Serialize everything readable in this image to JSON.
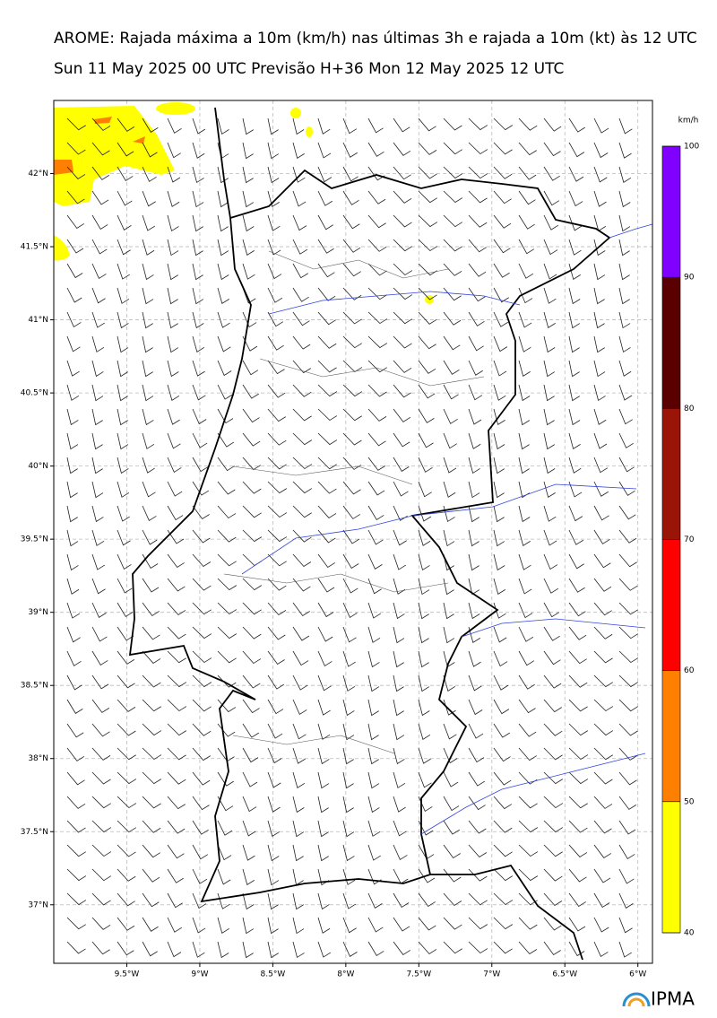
{
  "header": {
    "title": "AROME: Rajada máxima a 10m (km/h) nas últimas 3h e rajada a 10m (kt) às 12 UTC",
    "subtitle": "Sun 11 May 2025 00 UTC Previsão H+36 Mon 12 May 2025 12 UTC"
  },
  "map": {
    "xlim": [
      -10.0,
      -5.9
    ],
    "ylim": [
      36.6,
      42.5
    ],
    "lon_ticks": [
      {
        "value": -9.5,
        "label": "9.5°W"
      },
      {
        "value": -9,
        "label": "9°W"
      },
      {
        "value": -8.5,
        "label": "8.5°W"
      },
      {
        "value": -8,
        "label": "8°W"
      },
      {
        "value": -7.5,
        "label": "7.5°W"
      },
      {
        "value": -7,
        "label": "7°W"
      },
      {
        "value": -6.5,
        "label": "6.5°W"
      },
      {
        "value": -6,
        "label": "6°W"
      }
    ],
    "lat_ticks": [
      {
        "value": 42,
        "label": "42°N"
      },
      {
        "value": 41.5,
        "label": "41.5°N"
      },
      {
        "value": 41,
        "label": "41°N"
      },
      {
        "value": 40.5,
        "label": "40.5°N"
      },
      {
        "value": 40,
        "label": "40°N"
      },
      {
        "value": 39.5,
        "label": "39.5°N"
      },
      {
        "value": 39,
        "label": "39°N"
      },
      {
        "value": 38.5,
        "label": "38.5°N"
      },
      {
        "value": 38,
        "label": "38°N"
      },
      {
        "value": 37.5,
        "label": "37.5°N"
      },
      {
        "value": 37,
        "label": "37°N"
      }
    ],
    "grid": true
  },
  "colorbar": {
    "unit": "km/h",
    "ticks": [
      40,
      50,
      60,
      70,
      80,
      90,
      100
    ],
    "colors": [
      "#ffff00",
      "#ff8000",
      "#ff0000",
      "#9b1408",
      "#5a0000",
      "#8000ff"
    ]
  },
  "footer": {
    "logo": "IPMA"
  }
}
